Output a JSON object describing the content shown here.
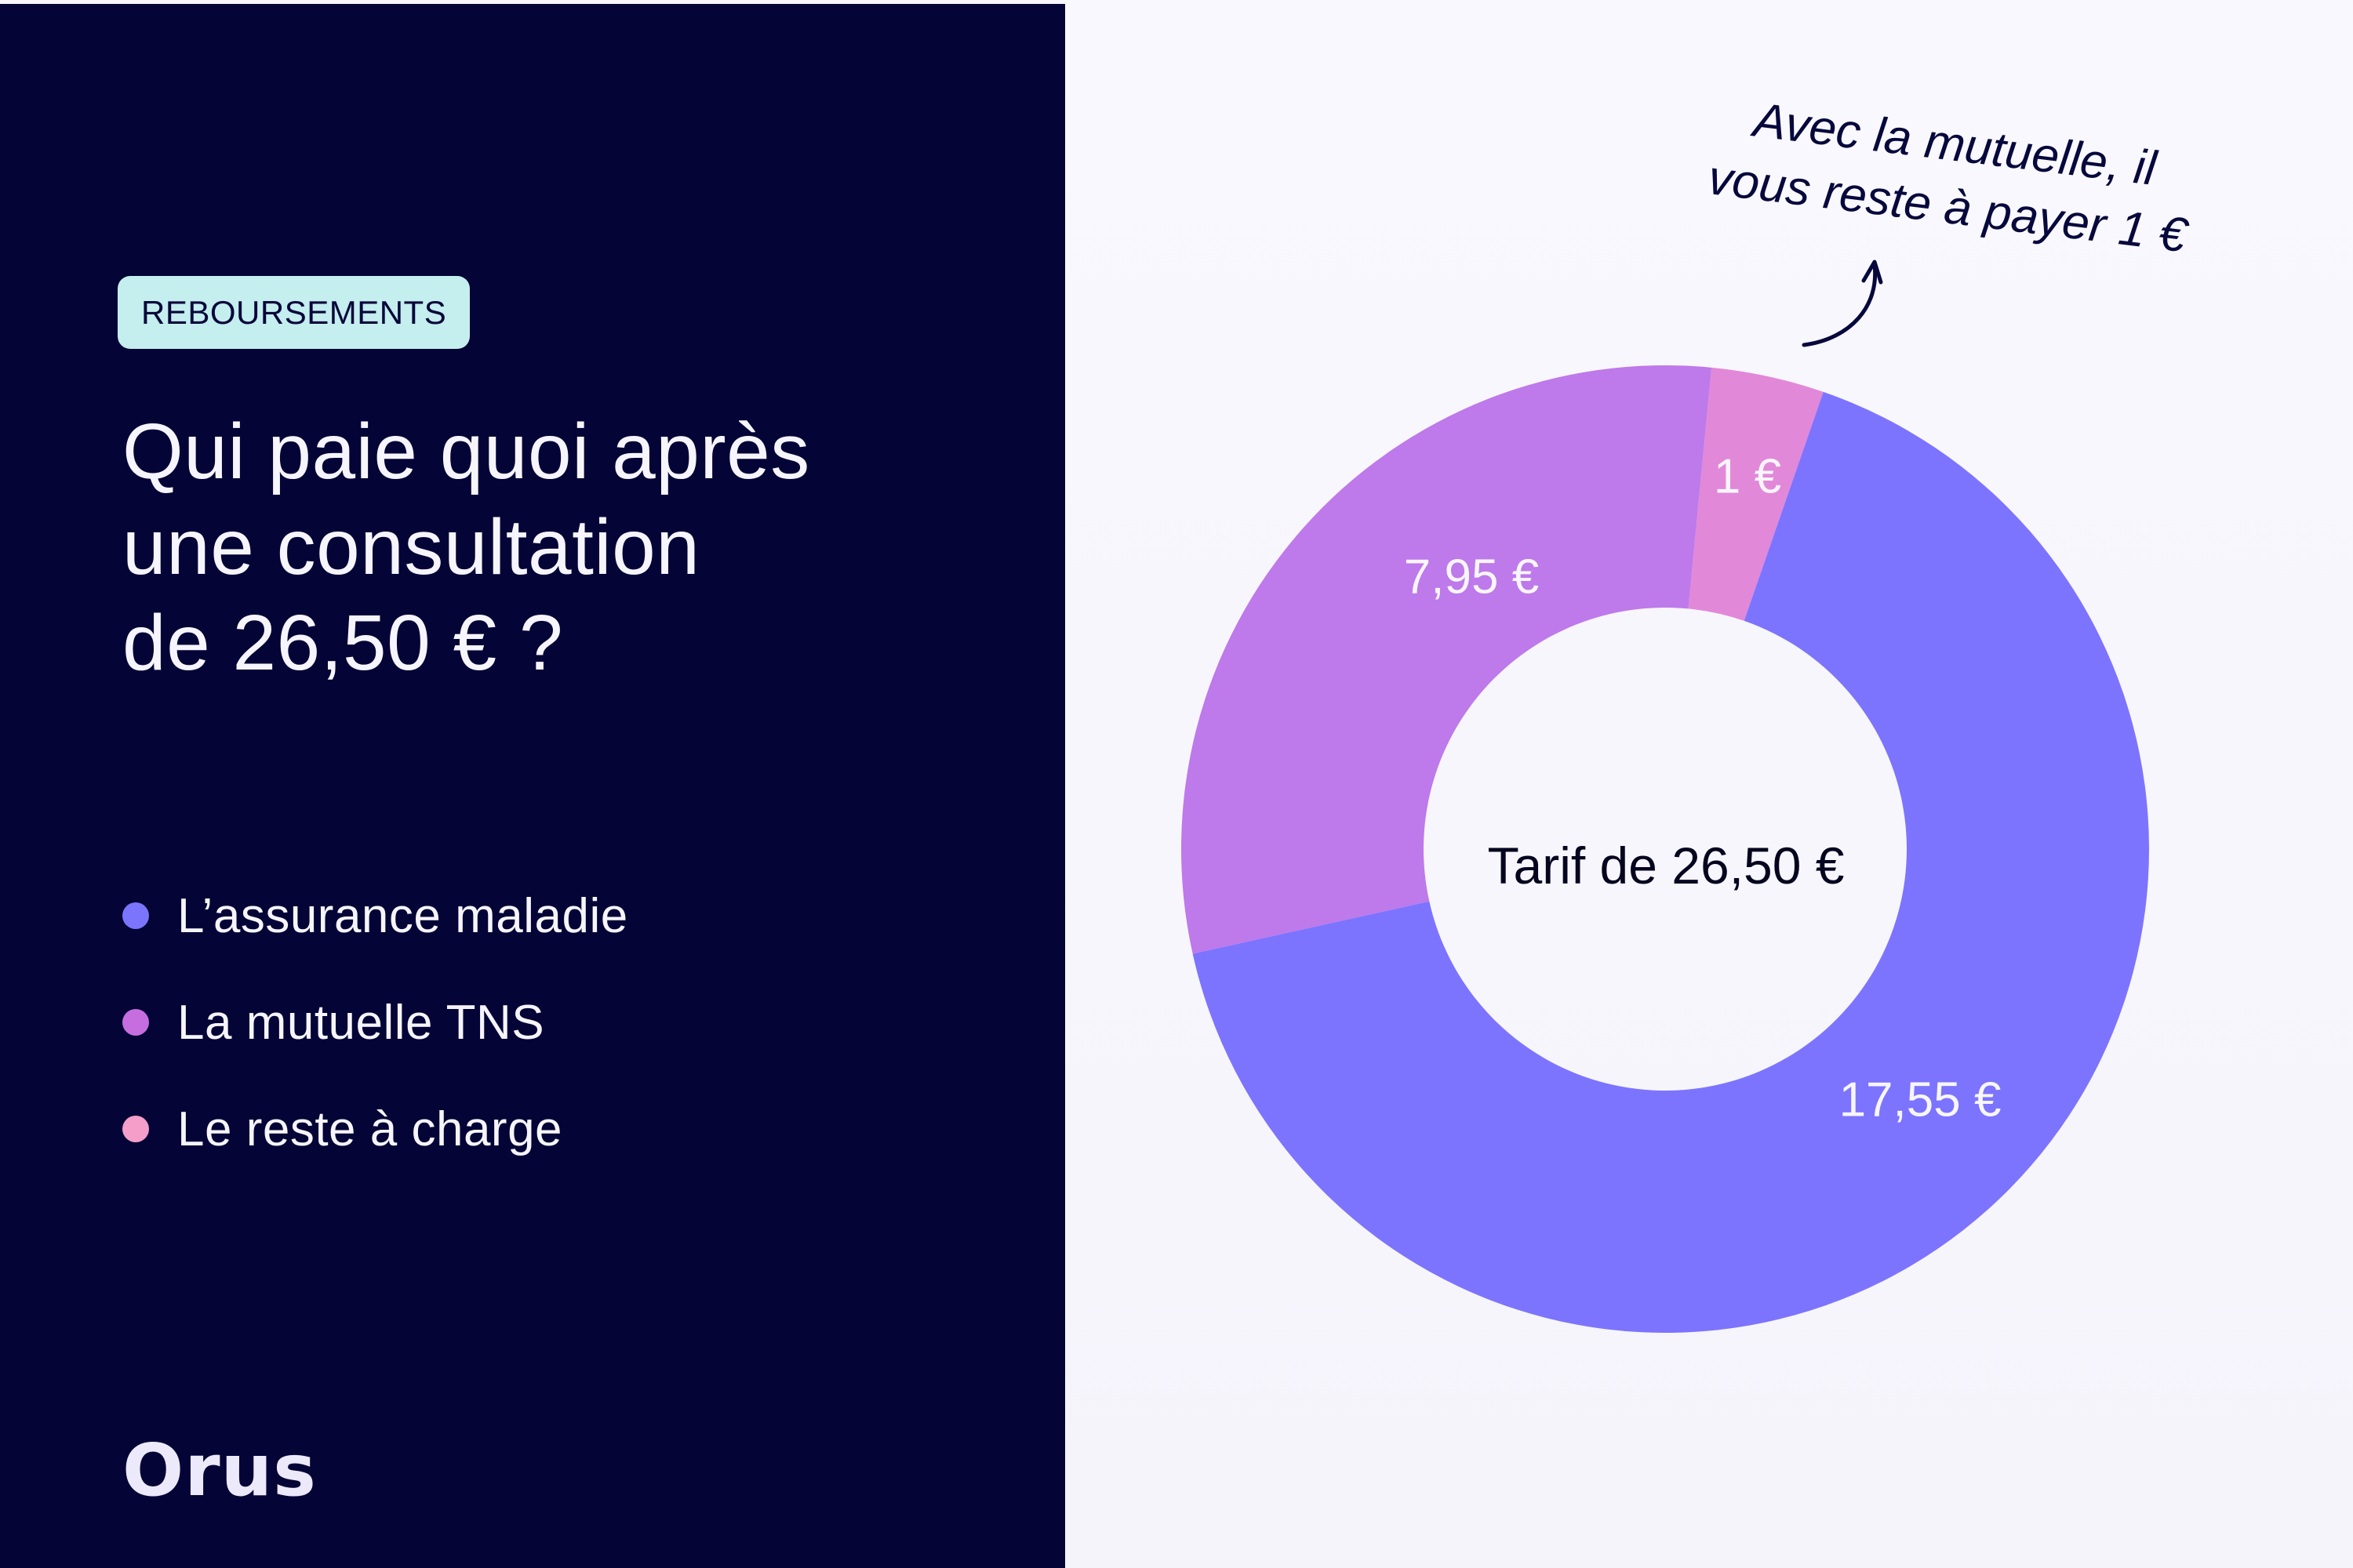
{
  "badge": {
    "label": "REBOURSEMENTS"
  },
  "title": {
    "lines": [
      "Qui paie quoi après",
      "une consultation",
      "de 26,50 € ?"
    ]
  },
  "legend": {
    "items": [
      {
        "label": "L’assurance maladie",
        "color": "#7B75FE"
      },
      {
        "label": "La mutuelle TNS",
        "color": "#C66EE0"
      },
      {
        "label": "Le reste à charge",
        "color": "#F49EC9"
      }
    ]
  },
  "logo": {
    "text": "Orus"
  },
  "annotation": {
    "lines": [
      "Avec la mutuelle, il",
      "vous reste à payer 1 €"
    ]
  },
  "center_label": "Tarif de 26,50 €",
  "colors": {
    "panel_dark": "#040436",
    "badge_bg": "#C5EEEE",
    "slice_blue": "#7C74FE",
    "slice_purple": "#BE79EA",
    "slice_pink": "#E288D9"
  },
  "chart_data": {
    "type": "pie",
    "variant": "donut",
    "title": "Qui paie quoi après une consultation de 26,50 € ?",
    "center_text": "Tarif de 26,50 €",
    "total": 26.5,
    "categories": [
      "L’assurance maladie",
      "La mutuelle TNS",
      "Le reste à charge"
    ],
    "values": [
      17.55,
      7.95,
      1.0
    ],
    "labels": [
      "17,55 €",
      "7,95 €",
      "1 €"
    ],
    "colors": [
      "#7C74FE",
      "#BE79EA",
      "#E288D9"
    ],
    "legend_position": "left",
    "annotation": "Avec la mutuelle, il vous reste à payer 1 €",
    "start_angle_deg": 5.5
  }
}
